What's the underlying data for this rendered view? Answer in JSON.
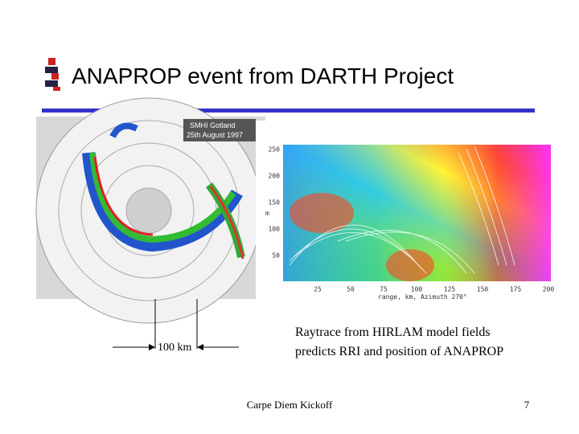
{
  "header": {
    "title": "ANAPROP event from DARTH Project"
  },
  "radar_image": {
    "labels": [
      "SMHI Gotland",
      "25th August 1997"
    ]
  },
  "raytrace_plot": {
    "y_axis_label": "m",
    "yticks": [
      250,
      200,
      150,
      100,
      50
    ],
    "xticks": [
      25,
      50,
      75,
      100,
      125,
      150,
      175,
      200
    ],
    "x_axis_label": "range, km, Azimuth 270°"
  },
  "scale_label": "100 km",
  "caption": {
    "lines": [
      "Raytrace from HIRLAM model fields",
      "predicts RRI and position of ANAPROP"
    ]
  },
  "footer": {
    "text": "Carpe Diem Kickoff",
    "page": 7
  }
}
